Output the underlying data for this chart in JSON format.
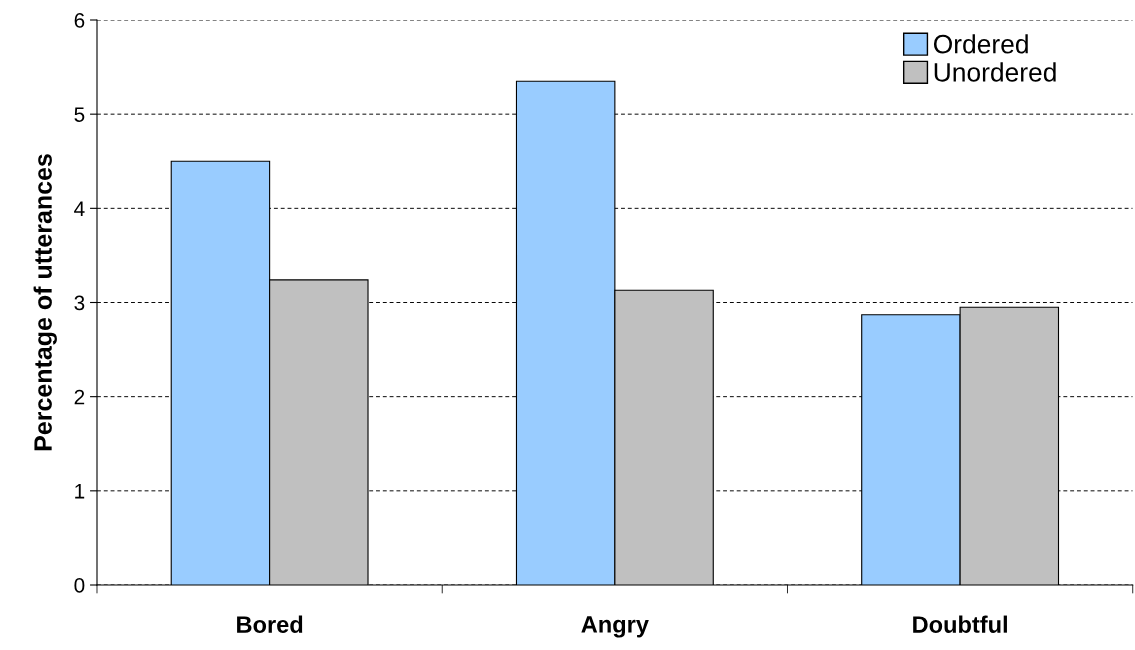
{
  "chart_data": {
    "type": "bar",
    "ylabel": "Percentage of utterances",
    "categories": [
      "Bored",
      "Angry",
      "Doubtful"
    ],
    "series": [
      {
        "name": "Ordered",
        "color": "#99ccff",
        "values": [
          4.5,
          5.35,
          2.87
        ]
      },
      {
        "name": "Unordered",
        "color": "#c0c0c0",
        "values": [
          3.24,
          3.13,
          2.95
        ]
      }
    ],
    "ylim": [
      0,
      6
    ],
    "yticks": [
      0,
      1,
      2,
      3,
      4,
      5,
      6
    ],
    "grid": "y",
    "legend": "top right"
  }
}
